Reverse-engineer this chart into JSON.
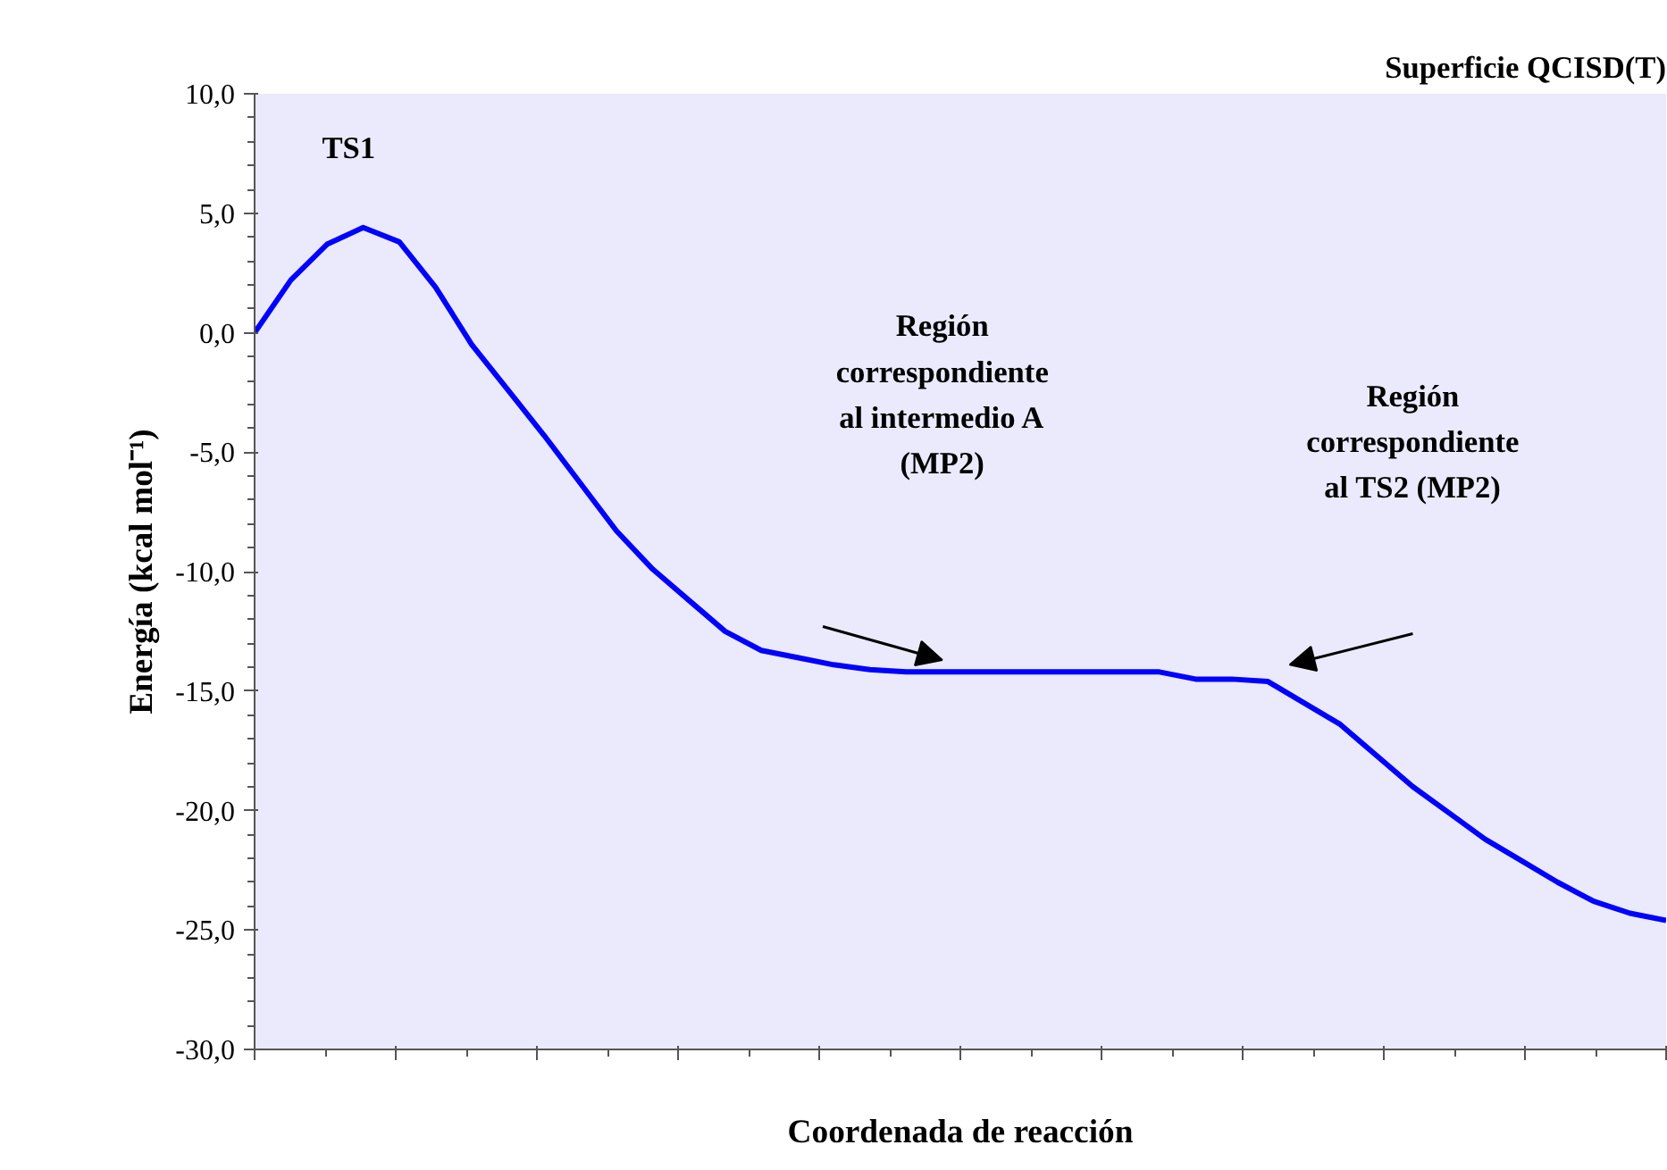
{
  "chart_data": {
    "type": "line",
    "title": "Superficie QCISD(T)",
    "xlabel": "Coordenada de reacción",
    "ylabel": "Energía (kcal mol⁻¹)",
    "categories": [
      null,
      null,
      null,
      null,
      null,
      null,
      null,
      null,
      null,
      null,
      null,
      null,
      null,
      null,
      null,
      null,
      null,
      null,
      null,
      null,
      null,
      null,
      null,
      null,
      null,
      null,
      null,
      null,
      null,
      null,
      null,
      null,
      null,
      null,
      null,
      null,
      null,
      null,
      null,
      null
    ],
    "series": [
      {
        "color": "#0000ff",
        "values": [
          0.0,
          2.2,
          3.7,
          4.4,
          3.8,
          1.9,
          -0.5,
          -2.4,
          -4.3,
          -6.3,
          -8.3,
          -9.9,
          -11.2,
          -12.5,
          -13.3,
          -13.6,
          -13.9,
          -14.1,
          -14.2,
          -14.2,
          -14.2,
          -14.2,
          -14.2,
          -14.2,
          -14.2,
          -14.2,
          -14.5,
          -14.5,
          -14.6,
          -15.5,
          -16.4,
          -17.7,
          -19.0,
          -20.1,
          -21.2,
          -22.1,
          -23.0,
          -23.8,
          -24.3,
          -24.6
        ]
      }
    ],
    "ylim": [
      -30,
      10
    ],
    "yticks": [
      {
        "value": -30,
        "label": "-30,0"
      },
      {
        "value": -25,
        "label": "-25,0"
      },
      {
        "value": -20,
        "label": "-20,0"
      },
      {
        "value": -15,
        "label": "-15,0"
      },
      {
        "value": -10,
        "label": "-10,0"
      },
      {
        "value": -5,
        "label": "-5,0"
      },
      {
        "value": 0,
        "label": "0,0"
      },
      {
        "value": 5,
        "label": "5,0"
      },
      {
        "value": 10,
        "label": "10,0"
      }
    ],
    "tick_labels": "y",
    "grid": false,
    "marker": "none",
    "line_style": "solid",
    "annotations": [
      "TS1",
      "Región\ncorrespondiente\nal intermedio A\n(MP2)",
      "Región\ncorrespondiente\nal TS2 (MP2)"
    ]
  }
}
